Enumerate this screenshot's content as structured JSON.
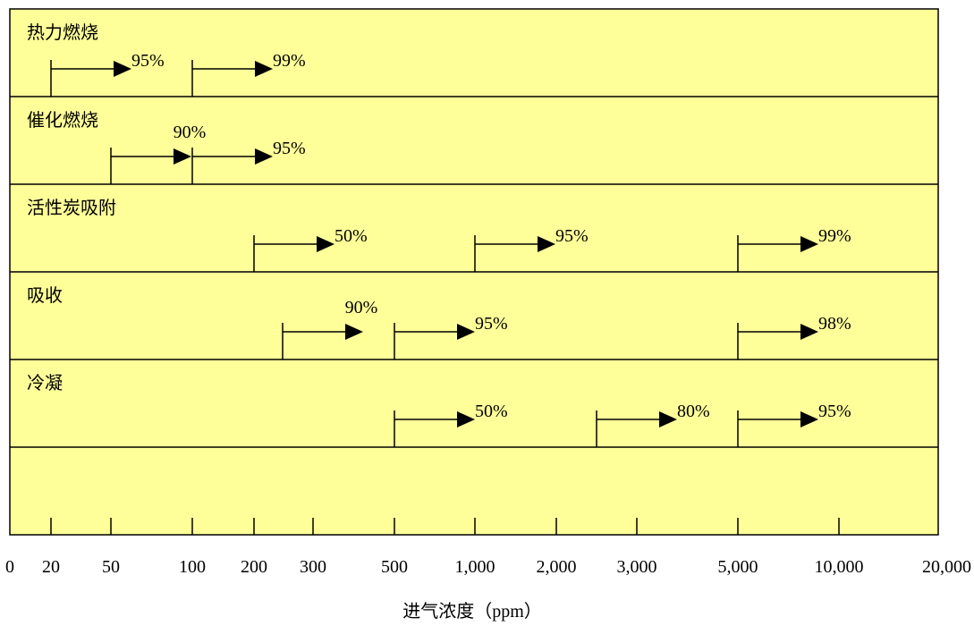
{
  "colors": {
    "panel": "#ffff99",
    "line": "#000000"
  },
  "chart_data": {
    "type": "diagram",
    "xlabel": "进气浓度（ppm）",
    "x_ticks": [
      "0",
      "20",
      "50",
      "100",
      "200",
      "300",
      "500",
      "1,000",
      "2,000",
      "3,000",
      "5,000",
      "10,000",
      "20,000"
    ],
    "rows": [
      {
        "name": "热力燃烧",
        "arrows": [
          {
            "start": "20",
            "efficiency": "95%"
          },
          {
            "start": "100",
            "efficiency": "99%"
          }
        ]
      },
      {
        "name": "催化燃烧",
        "arrows": [
          {
            "start": "50",
            "efficiency": "90%"
          },
          {
            "start": "100",
            "efficiency": "95%"
          }
        ]
      },
      {
        "name": "活性炭吸附",
        "arrows": [
          {
            "start": "200",
            "efficiency": "50%"
          },
          {
            "start": "1,000",
            "efficiency": "95%"
          },
          {
            "start": "5,000",
            "efficiency": "99%"
          }
        ]
      },
      {
        "name": "吸收",
        "arrows": [
          {
            "start": "250",
            "efficiency": "90%"
          },
          {
            "start": "500",
            "efficiency": "95%"
          },
          {
            "start": "5,000",
            "efficiency": "98%"
          }
        ]
      },
      {
        "name": "冷凝",
        "arrows": [
          {
            "start": "500",
            "efficiency": "50%"
          },
          {
            "start": "2,500",
            "efficiency": "80%"
          },
          {
            "start": "5,000",
            "efficiency": "95%"
          }
        ]
      },
      {
        "name": "",
        "arrows": []
      }
    ]
  }
}
